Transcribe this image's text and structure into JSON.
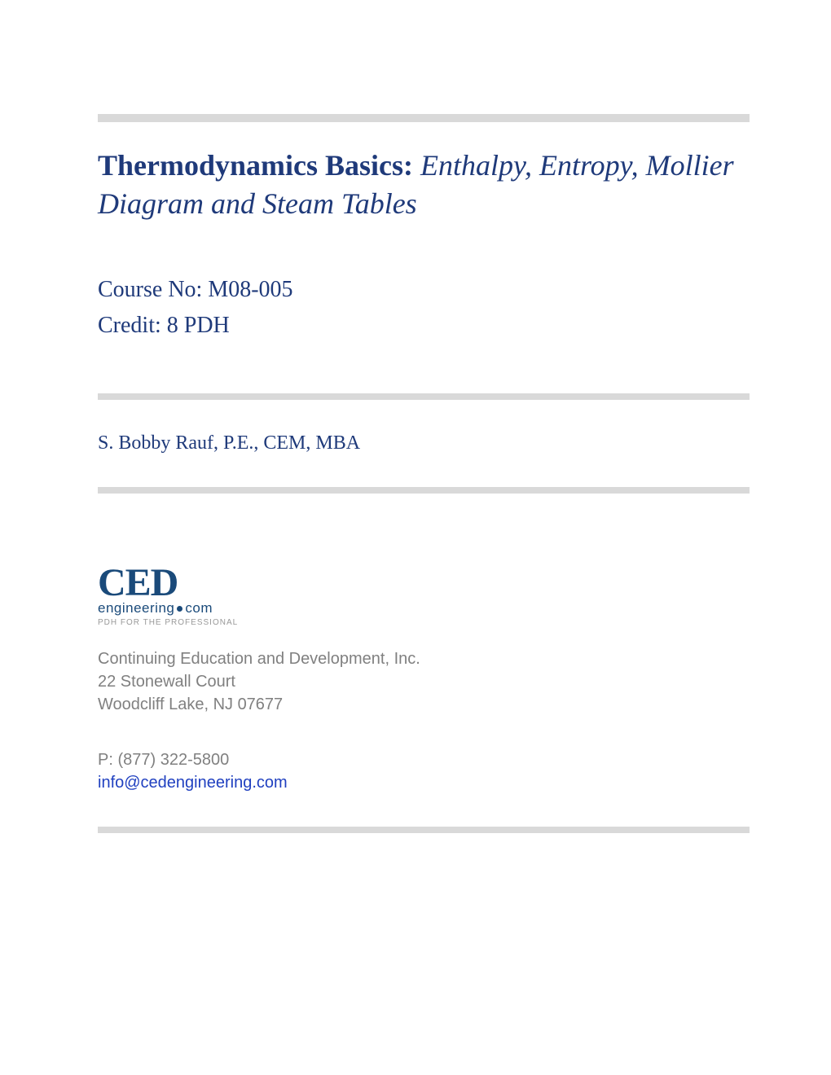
{
  "title": {
    "main": "Thermodynamics Basics:",
    "sub": " Enthalpy, Entropy, Mollier Diagram and Steam Tables"
  },
  "course": {
    "number_label": "Course No: M08-005",
    "credit_label": "Credit: 8 PDH"
  },
  "author": {
    "name": "S. Bobby Rauf, P.E., CEM, MBA"
  },
  "logo": {
    "main": "CED",
    "sub_prefix": "engineering",
    "sub_suffix": "com",
    "tagline": "PDH FOR THE PROFESSIONAL"
  },
  "company": {
    "name": "Continuing Education and Development, Inc.",
    "address1": "22 Stonewall Court",
    "address2": "Woodcliff Lake, NJ 07677"
  },
  "contact": {
    "phone": "P: (877) 322-5800",
    "email": "info@cedengineering.com"
  },
  "colors": {
    "divider": "#d9d9d9",
    "title_text": "#1f3a7a",
    "logo_text": "#1a4a7a",
    "gray_text": "#808080",
    "email_text": "#2040c0",
    "tagline_text": "#999999",
    "background": "#ffffff"
  }
}
